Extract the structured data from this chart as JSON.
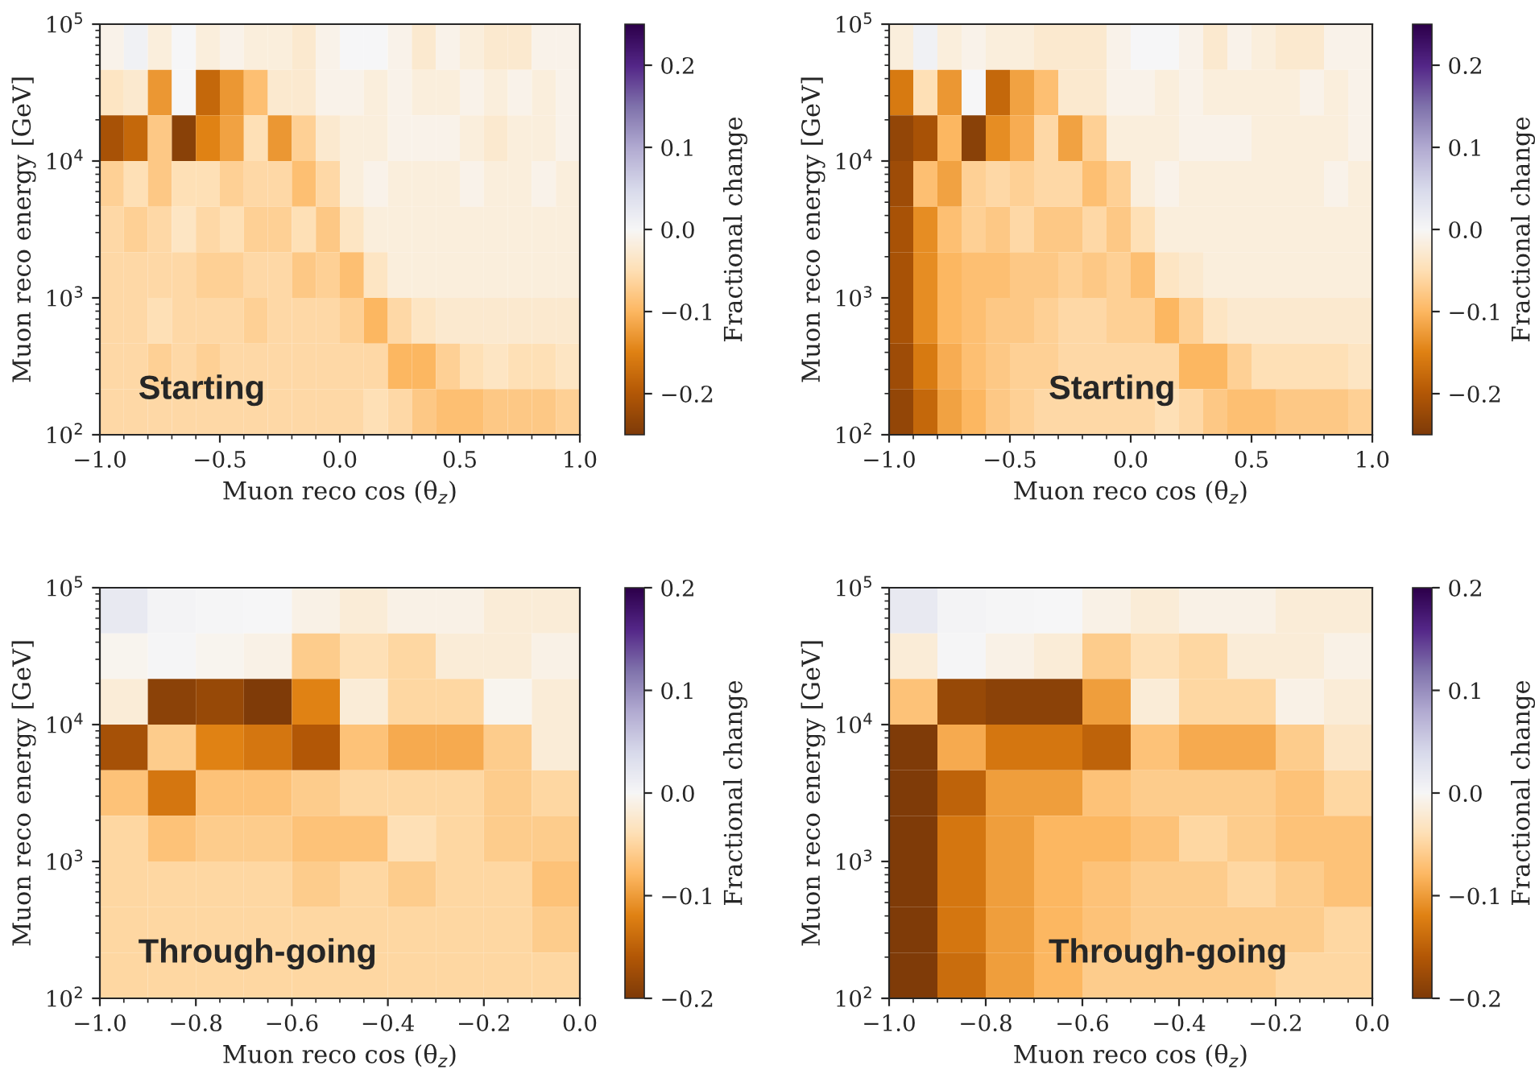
{
  "chart_data": [
    {
      "type": "heatmap",
      "xlabel": "Muon reco cos (θ$_{z}$)",
      "ylabel": "Muon reco energy [GeV]",
      "clabel": "Fractional change",
      "annotations": [
        "Starting"
      ],
      "log": "y",
      "x": [
        -0.95,
        -0.85,
        -0.75,
        -0.65,
        -0.55,
        -0.45,
        -0.35,
        -0.25,
        -0.15,
        -0.05,
        0.05,
        0.15,
        0.25,
        0.35,
        0.45,
        0.55,
        0.65,
        0.75,
        0.85,
        0.95
      ],
      "y": [
        68129,
        31623,
        14678,
        6813,
        3162,
        1468,
        681,
        316,
        147
      ],
      "xlim": [
        -1.0,
        1.0
      ],
      "xticks": [
        {
          "value": -1.0,
          "label": "−1.0"
        },
        {
          "value": -0.5,
          "label": "−0.5"
        },
        {
          "value": 0.0,
          "label": "0.0"
        },
        {
          "value": 0.5,
          "label": "0.5"
        },
        {
          "value": 1.0,
          "label": "1.0"
        }
      ],
      "ylim": [
        100,
        100000
      ],
      "yticks": [
        {
          "value": 100,
          "label": "10$^{2}$"
        },
        {
          "value": 1000,
          "label": "10$^{3}$"
        },
        {
          "value": 10000,
          "label": "10$^{4}$"
        },
        {
          "value": 100000,
          "label": "10$^{5}$"
        }
      ],
      "clim": [
        -0.25,
        0.25
      ],
      "cticks": [
        {
          "value": -0.2,
          "label": "−0.2"
        },
        {
          "value": -0.1,
          "label": "−0.1"
        },
        {
          "value": 0.0,
          "label": "0.0"
        },
        {
          "value": 0.1,
          "label": "0.1"
        },
        {
          "value": 0.2,
          "label": "0.2"
        }
      ],
      "cells": [
        [
          -0.01,
          0.01,
          -0.02,
          0,
          -0.02,
          -0.01,
          -0.02,
          -0.02,
          -0.03,
          -0.01,
          0,
          0,
          -0.01,
          -0.03,
          -0.01,
          -0.02,
          -0.03,
          -0.03,
          -0.01,
          -0.01
        ],
        [
          -0.04,
          -0.03,
          -0.13,
          0,
          -0.18,
          -0.13,
          -0.09,
          -0.03,
          -0.03,
          -0.01,
          -0.01,
          -0.02,
          -0.01,
          -0.02,
          -0.02,
          -0.01,
          -0.02,
          -0.01,
          -0.02,
          -0.01
        ],
        [
          -0.21,
          -0.18,
          -0.08,
          -0.24,
          -0.15,
          -0.12,
          -0.05,
          -0.13,
          -0.07,
          -0.03,
          -0.02,
          -0.02,
          -0.01,
          -0.01,
          -0.01,
          -0.02,
          -0.03,
          -0.02,
          -0.02,
          -0.01
        ],
        [
          -0.07,
          -0.05,
          -0.08,
          -0.05,
          -0.05,
          -0.07,
          -0.06,
          -0.06,
          -0.09,
          -0.06,
          -0.02,
          -0.01,
          -0.02,
          -0.02,
          -0.02,
          -0.01,
          -0.02,
          -0.02,
          -0.01,
          -0.02
        ],
        [
          -0.06,
          -0.07,
          -0.06,
          -0.04,
          -0.06,
          -0.05,
          -0.07,
          -0.07,
          -0.05,
          -0.08,
          -0.04,
          -0.02,
          -0.02,
          -0.02,
          -0.02,
          -0.02,
          -0.02,
          -0.02,
          -0.02,
          -0.02
        ],
        [
          -0.06,
          -0.06,
          -0.06,
          -0.06,
          -0.07,
          -0.07,
          -0.06,
          -0.06,
          -0.08,
          -0.07,
          -0.09,
          -0.04,
          -0.02,
          -0.02,
          -0.02,
          -0.02,
          -0.02,
          -0.02,
          -0.02,
          -0.02
        ],
        [
          -0.06,
          -0.06,
          -0.05,
          -0.06,
          -0.06,
          -0.06,
          -0.07,
          -0.06,
          -0.06,
          -0.06,
          -0.07,
          -0.1,
          -0.06,
          -0.04,
          -0.03,
          -0.03,
          -0.03,
          -0.03,
          -0.03,
          -0.03
        ],
        [
          -0.06,
          -0.06,
          -0.07,
          -0.06,
          -0.07,
          -0.06,
          -0.06,
          -0.06,
          -0.06,
          -0.06,
          -0.06,
          -0.06,
          -0.1,
          -0.1,
          -0.07,
          -0.05,
          -0.04,
          -0.05,
          -0.05,
          -0.04
        ],
        [
          -0.06,
          -0.06,
          -0.06,
          -0.06,
          -0.06,
          -0.06,
          -0.06,
          -0.06,
          -0.06,
          -0.06,
          -0.06,
          -0.05,
          -0.06,
          -0.08,
          -0.09,
          -0.09,
          -0.08,
          -0.08,
          -0.08,
          -0.07
        ]
      ]
    },
    {
      "type": "heatmap",
      "xlabel": "Muon reco cos (θ$_{z}$)",
      "ylabel": "Muon reco energy [GeV]",
      "clabel": "Fractional change",
      "annotations": [
        "Starting"
      ],
      "log": "y",
      "x": [
        -0.95,
        -0.85,
        -0.75,
        -0.65,
        -0.55,
        -0.45,
        -0.35,
        -0.25,
        -0.15,
        -0.05,
        0.05,
        0.15,
        0.25,
        0.35,
        0.45,
        0.55,
        0.65,
        0.75,
        0.85,
        0.95
      ],
      "y": [
        68129,
        31623,
        14678,
        6813,
        3162,
        1468,
        681,
        316,
        147
      ],
      "xlim": [
        -1.0,
        1.0
      ],
      "xticks": [
        {
          "value": -1.0,
          "label": "−1.0"
        },
        {
          "value": -0.5,
          "label": "−0.5"
        },
        {
          "value": 0.0,
          "label": "0.0"
        },
        {
          "value": 0.5,
          "label": "0.5"
        },
        {
          "value": 1.0,
          "label": "1.0"
        }
      ],
      "ylim": [
        100,
        100000
      ],
      "yticks": [
        {
          "value": 100,
          "label": "10$^{2}$"
        },
        {
          "value": 1000,
          "label": "10$^{3}$"
        },
        {
          "value": 10000,
          "label": "10$^{4}$"
        },
        {
          "value": 100000,
          "label": "10$^{5}$"
        }
      ],
      "clim": [
        -0.25,
        0.25
      ],
      "cticks": [
        {
          "value": -0.2,
          "label": "−0.2"
        },
        {
          "value": -0.1,
          "label": "−0.1"
        },
        {
          "value": 0.0,
          "label": "0.0"
        },
        {
          "value": 0.1,
          "label": "0.1"
        },
        {
          "value": 0.2,
          "label": "0.2"
        }
      ],
      "cells": [
        [
          -0.02,
          0.01,
          -0.02,
          -0.01,
          -0.02,
          -0.02,
          -0.03,
          -0.03,
          -0.03,
          -0.01,
          0,
          0,
          -0.01,
          -0.03,
          -0.01,
          -0.02,
          -0.03,
          -0.03,
          -0.01,
          -0.01
        ],
        [
          -0.16,
          -0.05,
          -0.13,
          0,
          -0.18,
          -0.12,
          -0.09,
          -0.03,
          -0.03,
          -0.01,
          -0.01,
          -0.02,
          -0.01,
          -0.02,
          -0.02,
          -0.02,
          -0.02,
          -0.01,
          -0.02,
          -0.01
        ],
        [
          -0.23,
          -0.21,
          -0.1,
          -0.24,
          -0.14,
          -0.11,
          -0.06,
          -0.12,
          -0.07,
          -0.02,
          -0.02,
          -0.02,
          -0.01,
          -0.01,
          -0.01,
          -0.02,
          -0.02,
          -0.02,
          -0.02,
          -0.01
        ],
        [
          -0.22,
          -0.09,
          -0.12,
          -0.07,
          -0.06,
          -0.07,
          -0.06,
          -0.06,
          -0.09,
          -0.07,
          -0.02,
          -0.01,
          -0.02,
          -0.02,
          -0.02,
          -0.02,
          -0.02,
          -0.02,
          -0.01,
          -0.02
        ],
        [
          -0.21,
          -0.14,
          -0.09,
          -0.07,
          -0.08,
          -0.06,
          -0.08,
          -0.08,
          -0.06,
          -0.08,
          -0.05,
          -0.02,
          -0.02,
          -0.02,
          -0.02,
          -0.02,
          -0.02,
          -0.02,
          -0.02,
          -0.02
        ],
        [
          -0.21,
          -0.14,
          -0.1,
          -0.09,
          -0.09,
          -0.08,
          -0.08,
          -0.07,
          -0.08,
          -0.07,
          -0.09,
          -0.04,
          -0.03,
          -0.02,
          -0.02,
          -0.02,
          -0.02,
          -0.02,
          -0.02,
          -0.02
        ],
        [
          -0.21,
          -0.14,
          -0.1,
          -0.09,
          -0.08,
          -0.08,
          -0.07,
          -0.06,
          -0.06,
          -0.07,
          -0.07,
          -0.1,
          -0.07,
          -0.04,
          -0.03,
          -0.03,
          -0.03,
          -0.03,
          -0.03,
          -0.03
        ],
        [
          -0.22,
          -0.16,
          -0.11,
          -0.09,
          -0.08,
          -0.07,
          -0.07,
          -0.06,
          -0.06,
          -0.06,
          -0.06,
          -0.06,
          -0.1,
          -0.1,
          -0.07,
          -0.05,
          -0.05,
          -0.05,
          -0.05,
          -0.04
        ],
        [
          -0.23,
          -0.18,
          -0.12,
          -0.1,
          -0.08,
          -0.07,
          -0.06,
          -0.06,
          -0.06,
          -0.06,
          -0.06,
          -0.05,
          -0.06,
          -0.08,
          -0.09,
          -0.09,
          -0.08,
          -0.08,
          -0.08,
          -0.07
        ]
      ]
    },
    {
      "type": "heatmap",
      "xlabel": "Muon reco cos (θ$_{z}$)",
      "ylabel": "Muon reco energy [GeV]",
      "clabel": "Fractional change",
      "annotations": [
        "Through-going"
      ],
      "log": "y",
      "x": [
        -0.95,
        -0.85,
        -0.75,
        -0.65,
        -0.55,
        -0.45,
        -0.35,
        -0.25,
        -0.15,
        -0.05
      ],
      "y": [
        68129,
        31623,
        14678,
        6813,
        3162,
        1468,
        681,
        316,
        147
      ],
      "xlim": [
        -1.0,
        0.0
      ],
      "xticks": [
        {
          "value": -1.0,
          "label": "−1.0"
        },
        {
          "value": -0.8,
          "label": "−0.8"
        },
        {
          "value": -0.6,
          "label": "−0.6"
        },
        {
          "value": -0.4,
          "label": "−0.4"
        },
        {
          "value": -0.2,
          "label": "−0.2"
        },
        {
          "value": 0.0,
          "label": "0.0"
        }
      ],
      "ylim": [
        100,
        100000
      ],
      "yticks": [
        {
          "value": 100,
          "label": "10$^{2}$"
        },
        {
          "value": 1000,
          "label": "10$^{3}$"
        },
        {
          "value": 10000,
          "label": "10$^{4}$"
        },
        {
          "value": 100000,
          "label": "10$^{5}$"
        }
      ],
      "clim": [
        -0.2,
        0.2
      ],
      "cticks": [
        {
          "value": -0.2,
          "label": "−0.2"
        },
        {
          "value": -0.1,
          "label": "−0.1"
        },
        {
          "value": 0.0,
          "label": "0.0"
        },
        {
          "value": 0.1,
          "label": "0.1"
        },
        {
          "value": 0.2,
          "label": "0.2"
        }
      ],
      "cells": [
        [
          0.02,
          0.005,
          0.003,
          0,
          -0.01,
          -0.02,
          -0.01,
          -0.01,
          -0.02,
          -0.02
        ],
        [
          -0.005,
          0.002,
          -0.005,
          -0.01,
          -0.06,
          -0.04,
          -0.05,
          -0.02,
          -0.02,
          -0.01
        ],
        [
          -0.02,
          -0.19,
          -0.18,
          -0.2,
          -0.12,
          -0.02,
          -0.05,
          -0.05,
          -0.005,
          -0.02
        ],
        [
          -0.17,
          -0.06,
          -0.12,
          -0.13,
          -0.16,
          -0.07,
          -0.09,
          -0.09,
          -0.06,
          -0.02
        ],
        [
          -0.07,
          -0.13,
          -0.07,
          -0.07,
          -0.06,
          -0.05,
          -0.05,
          -0.05,
          -0.06,
          -0.05
        ],
        [
          -0.05,
          -0.07,
          -0.06,
          -0.06,
          -0.07,
          -0.07,
          -0.04,
          -0.05,
          -0.06,
          -0.06
        ],
        [
          -0.05,
          -0.05,
          -0.05,
          -0.05,
          -0.06,
          -0.05,
          -0.06,
          -0.05,
          -0.05,
          -0.07
        ],
        [
          -0.05,
          -0.05,
          -0.05,
          -0.05,
          -0.05,
          -0.05,
          -0.05,
          -0.05,
          -0.05,
          -0.06
        ],
        [
          -0.05,
          -0.05,
          -0.05,
          -0.05,
          -0.05,
          -0.05,
          -0.05,
          -0.05,
          -0.05,
          -0.05
        ]
      ]
    },
    {
      "type": "heatmap",
      "xlabel": "Muon reco cos (θ$_{z}$)",
      "ylabel": "Muon reco energy [GeV]",
      "clabel": "Fractional change",
      "annotations": [
        "Through-going"
      ],
      "log": "y",
      "x": [
        -0.95,
        -0.85,
        -0.75,
        -0.65,
        -0.55,
        -0.45,
        -0.35,
        -0.25,
        -0.15,
        -0.05
      ],
      "y": [
        68129,
        31623,
        14678,
        6813,
        3162,
        1468,
        681,
        316,
        147
      ],
      "xlim": [
        -1.0,
        0.0
      ],
      "xticks": [
        {
          "value": -1.0,
          "label": "−1.0"
        },
        {
          "value": -0.8,
          "label": "−0.8"
        },
        {
          "value": -0.6,
          "label": "−0.6"
        },
        {
          "value": -0.4,
          "label": "−0.4"
        },
        {
          "value": -0.2,
          "label": "−0.2"
        },
        {
          "value": 0.0,
          "label": "0.0"
        }
      ],
      "ylim": [
        100,
        100000
      ],
      "yticks": [
        {
          "value": 100,
          "label": "10$^{2}$"
        },
        {
          "value": 1000,
          "label": "10$^{3}$"
        },
        {
          "value": 10000,
          "label": "10$^{4}$"
        },
        {
          "value": 100000,
          "label": "10$^{5}$"
        }
      ],
      "clim": [
        -0.2,
        0.2
      ],
      "cticks": [
        {
          "value": -0.2,
          "label": "−0.2"
        },
        {
          "value": -0.1,
          "label": "−0.1"
        },
        {
          "value": 0.0,
          "label": "0.0"
        },
        {
          "value": 0.1,
          "label": "0.1"
        },
        {
          "value": 0.2,
          "label": "0.2"
        }
      ],
      "cells": [
        [
          0.02,
          0.005,
          0.003,
          0,
          -0.01,
          -0.02,
          -0.01,
          -0.01,
          -0.02,
          -0.02
        ],
        [
          -0.02,
          0.002,
          -0.01,
          -0.02,
          -0.06,
          -0.04,
          -0.05,
          -0.02,
          -0.02,
          -0.01
        ],
        [
          -0.07,
          -0.18,
          -0.19,
          -0.19,
          -0.1,
          -0.02,
          -0.05,
          -0.05,
          -0.01,
          -0.02
        ],
        [
          -0.2,
          -0.09,
          -0.13,
          -0.13,
          -0.15,
          -0.07,
          -0.09,
          -0.09,
          -0.06,
          -0.03
        ],
        [
          -0.2,
          -0.15,
          -0.1,
          -0.1,
          -0.07,
          -0.06,
          -0.06,
          -0.06,
          -0.07,
          -0.05
        ],
        [
          -0.2,
          -0.13,
          -0.1,
          -0.08,
          -0.08,
          -0.07,
          -0.05,
          -0.06,
          -0.07,
          -0.07
        ],
        [
          -0.2,
          -0.13,
          -0.1,
          -0.08,
          -0.07,
          -0.06,
          -0.06,
          -0.05,
          -0.06,
          -0.07
        ],
        [
          -0.2,
          -0.13,
          -0.1,
          -0.08,
          -0.07,
          -0.06,
          -0.06,
          -0.06,
          -0.06,
          -0.05
        ],
        [
          -0.2,
          -0.14,
          -0.1,
          -0.08,
          -0.06,
          -0.06,
          -0.06,
          -0.06,
          -0.05,
          -0.05
        ]
      ]
    }
  ]
}
